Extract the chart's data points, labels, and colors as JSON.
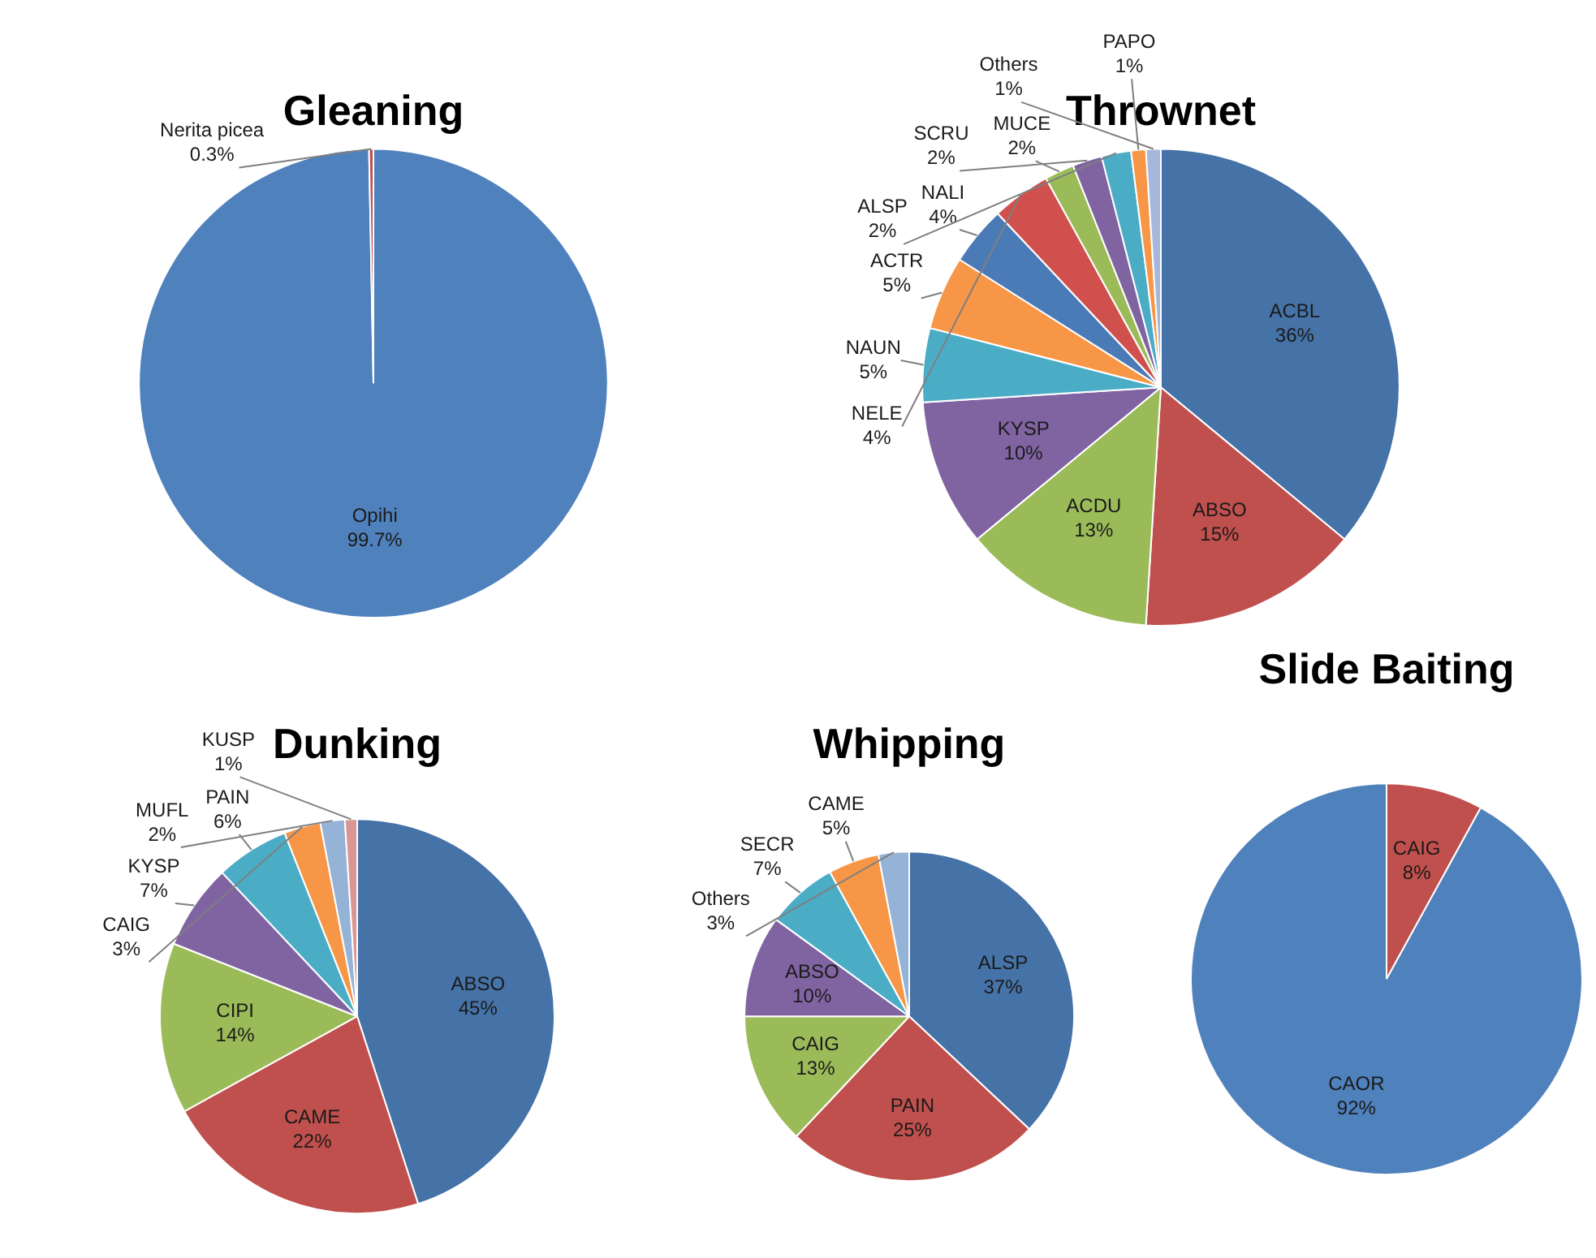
{
  "chart_data": [
    {
      "type": "pie",
      "title": "Gleaning",
      "categories": [
        "Opihi",
        "Nerita picea"
      ],
      "values": [
        99.7,
        0.3
      ],
      "value_labels": [
        "99.7%",
        "0.3%"
      ],
      "colors": [
        "#4f81bd",
        "#c0504d"
      ],
      "legend": false
    },
    {
      "type": "pie",
      "title": "Thrownet",
      "categories": [
        "ACBL",
        "ABSO",
        "ACDU",
        "KYSP",
        "NAUN",
        "ACTR",
        "NALI",
        "NELE",
        "MUCE",
        "SCRU",
        "ALSP",
        "PAPO",
        "Others"
      ],
      "values": [
        36,
        15,
        13,
        10,
        5,
        5,
        4,
        4,
        2,
        2,
        2,
        1,
        1
      ],
      "value_labels": [
        "36%",
        "15%",
        "13%",
        "10%",
        "5%",
        "5%",
        "4%",
        "4%",
        "2%",
        "2%",
        "2%",
        "1%",
        "1%"
      ],
      "colors": [
        "#4572a7",
        "#c0504d",
        "#9bbb59",
        "#8064a2",
        "#4bacc6",
        "#f79646",
        "#4a7bb7",
        "#d0504d",
        "#9bbb59",
        "#8064a2",
        "#4bacc6",
        "#f79646",
        "#a5b8dc"
      ],
      "legend": false
    },
    {
      "type": "pie",
      "title": "Dunking",
      "categories": [
        "ABSO",
        "CAME",
        "CIPI",
        "KYSP",
        "PAIN",
        "CAIG",
        "MUFL",
        "KUSP"
      ],
      "values": [
        45,
        22,
        14,
        7,
        6,
        3,
        2,
        1
      ],
      "value_labels": [
        "45%",
        "22%",
        "14%",
        "7%",
        "6%",
        "3%",
        "2%",
        "1%"
      ],
      "colors": [
        "#4572a7",
        "#c0504d",
        "#9bbb59",
        "#8064a2",
        "#4bacc6",
        "#f79646",
        "#95b3d7",
        "#d99694"
      ],
      "legend": false
    },
    {
      "type": "pie",
      "title": "Whipping",
      "categories": [
        "ALSP",
        "PAIN",
        "CAIG",
        "ABSO",
        "SECR",
        "CAME",
        "Others"
      ],
      "values": [
        37,
        25,
        13,
        10,
        7,
        5,
        3
      ],
      "value_labels": [
        "37%",
        "25%",
        "13%",
        "10%",
        "7%",
        "5%",
        "3%"
      ],
      "colors": [
        "#4572a7",
        "#c0504d",
        "#9bbb59",
        "#8064a2",
        "#4bacc6",
        "#f79646",
        "#95b3d7"
      ],
      "legend": false
    },
    {
      "type": "pie",
      "title": "Slide Baiting",
      "categories": [
        "CAIG",
        "CAOR"
      ],
      "values": [
        8,
        92
      ],
      "value_labels": [
        "8%",
        "92%"
      ],
      "colors": [
        "#c0504d",
        "#4f81bd"
      ],
      "legend": false
    }
  ]
}
